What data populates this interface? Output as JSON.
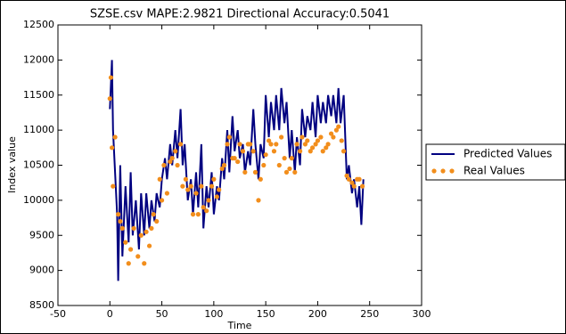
{
  "chart_data": {
    "type": "line",
    "title": "SZSE.csv MAPE:2.9821 Directional Accuracy:0.5041",
    "x_label": "Time",
    "y_label": "Index value",
    "xlim": [
      -50,
      300
    ],
    "xticks": [
      -50,
      0,
      50,
      100,
      150,
      200,
      250,
      300
    ],
    "ylim": [
      8500,
      12500
    ],
    "yticks": [
      8500,
      9000,
      9500,
      10000,
      10500,
      11000,
      11500,
      12000,
      12500
    ],
    "legend": "outside-right",
    "series": [
      {
        "name": "Predicted Values",
        "color": "#000080",
        "kind": "line",
        "x": [
          0,
          2,
          3,
          5,
          7,
          8,
          10,
          12,
          15,
          18,
          20,
          22,
          25,
          28,
          30,
          33,
          35,
          38,
          40,
          43,
          45,
          48,
          50,
          53,
          55,
          58,
          60,
          63,
          65,
          68,
          70,
          72,
          75,
          78,
          80,
          83,
          85,
          88,
          90,
          93,
          95,
          98,
          100,
          103,
          105,
          108,
          110,
          113,
          115,
          118,
          120,
          123,
          125,
          128,
          130,
          133,
          135,
          138,
          140,
          143,
          145,
          148,
          150,
          153,
          155,
          158,
          160,
          163,
          165,
          168,
          170,
          173,
          175,
          178,
          180,
          183,
          185,
          188,
          190,
          193,
          195,
          198,
          200,
          203,
          205,
          208,
          210,
          213,
          215,
          218,
          220,
          222,
          225,
          228,
          230,
          233,
          235,
          238,
          240,
          242,
          244
        ],
        "values": [
          11300,
          12000,
          11000,
          10400,
          9800,
          8850,
          10500,
          9200,
          10200,
          9400,
          10400,
          9500,
          10000,
          9300,
          10100,
          9500,
          10100,
          9600,
          10000,
          9700,
          10100,
          9900,
          10300,
          10600,
          10300,
          10800,
          10500,
          11000,
          10600,
          11300,
          10500,
          10800,
          10000,
          10300,
          9800,
          10400,
          9900,
          10800,
          9600,
          10200,
          9900,
          10400,
          9800,
          10200,
          10000,
          10600,
          10300,
          11000,
          10400,
          11200,
          10700,
          11000,
          10600,
          10800,
          10400,
          10700,
          10500,
          11300,
          10800,
          10300,
          10800,
          10600,
          11500,
          10900,
          11400,
          11000,
          11500,
          11000,
          11600,
          11100,
          11400,
          10600,
          11000,
          10400,
          10900,
          10500,
          11300,
          10900,
          11200,
          11000,
          11400,
          10900,
          11500,
          11100,
          11400,
          11100,
          11500,
          11200,
          11500,
          11100,
          11600,
          11100,
          11500,
          10300,
          10500,
          10100,
          10300,
          9900,
          10200,
          9650,
          10300
        ]
      },
      {
        "name": "Real Values",
        "color": "#f28e1c",
        "kind": "dots",
        "x": [
          0,
          1,
          2,
          3,
          5,
          8,
          10,
          12,
          15,
          18,
          20,
          23,
          27,
          30,
          33,
          35,
          38,
          40,
          42,
          45,
          48,
          50,
          52,
          55,
          58,
          60,
          63,
          65,
          68,
          70,
          73,
          75,
          78,
          80,
          83,
          85,
          88,
          90,
          93,
          95,
          98,
          100,
          103,
          105,
          108,
          110,
          113,
          115,
          118,
          120,
          123,
          125,
          128,
          130,
          133,
          135,
          138,
          140,
          143,
          145,
          148,
          150,
          153,
          155,
          158,
          160,
          163,
          165,
          168,
          170,
          173,
          175,
          178,
          180,
          183,
          185,
          188,
          190,
          193,
          195,
          198,
          200,
          203,
          205,
          208,
          210,
          213,
          215,
          218,
          220,
          223,
          225,
          228,
          230,
          233,
          235,
          238,
          240,
          243
        ],
        "values": [
          11450,
          11750,
          10750,
          10200,
          10900,
          9800,
          9700,
          9600,
          9400,
          9100,
          9300,
          9600,
          9200,
          9500,
          9100,
          9550,
          9350,
          9600,
          9800,
          9700,
          10300,
          10000,
          10500,
          10100,
          10550,
          10600,
          10700,
          10500,
          10800,
          10200,
          10300,
          10150,
          10200,
          9800,
          10100,
          9800,
          10200,
          9900,
          9850,
          10000,
          10200,
          10300,
          10050,
          10150,
          10450,
          10500,
          10800,
          10900,
          10600,
          10600,
          10550,
          10800,
          10700,
          10400,
          10800,
          10800,
          10700,
          10400,
          10000,
          10300,
          10500,
          10650,
          10850,
          10800,
          10700,
          10800,
          10500,
          10900,
          10600,
          10400,
          10450,
          10600,
          10400,
          10800,
          10700,
          10900,
          10800,
          10850,
          10700,
          10750,
          10800,
          10850,
          10900,
          10700,
          10750,
          10800,
          10950,
          10900,
          11000,
          11050,
          10850,
          10700,
          10350,
          10300,
          10250,
          10200,
          10300,
          10300,
          10200
        ]
      }
    ]
  }
}
